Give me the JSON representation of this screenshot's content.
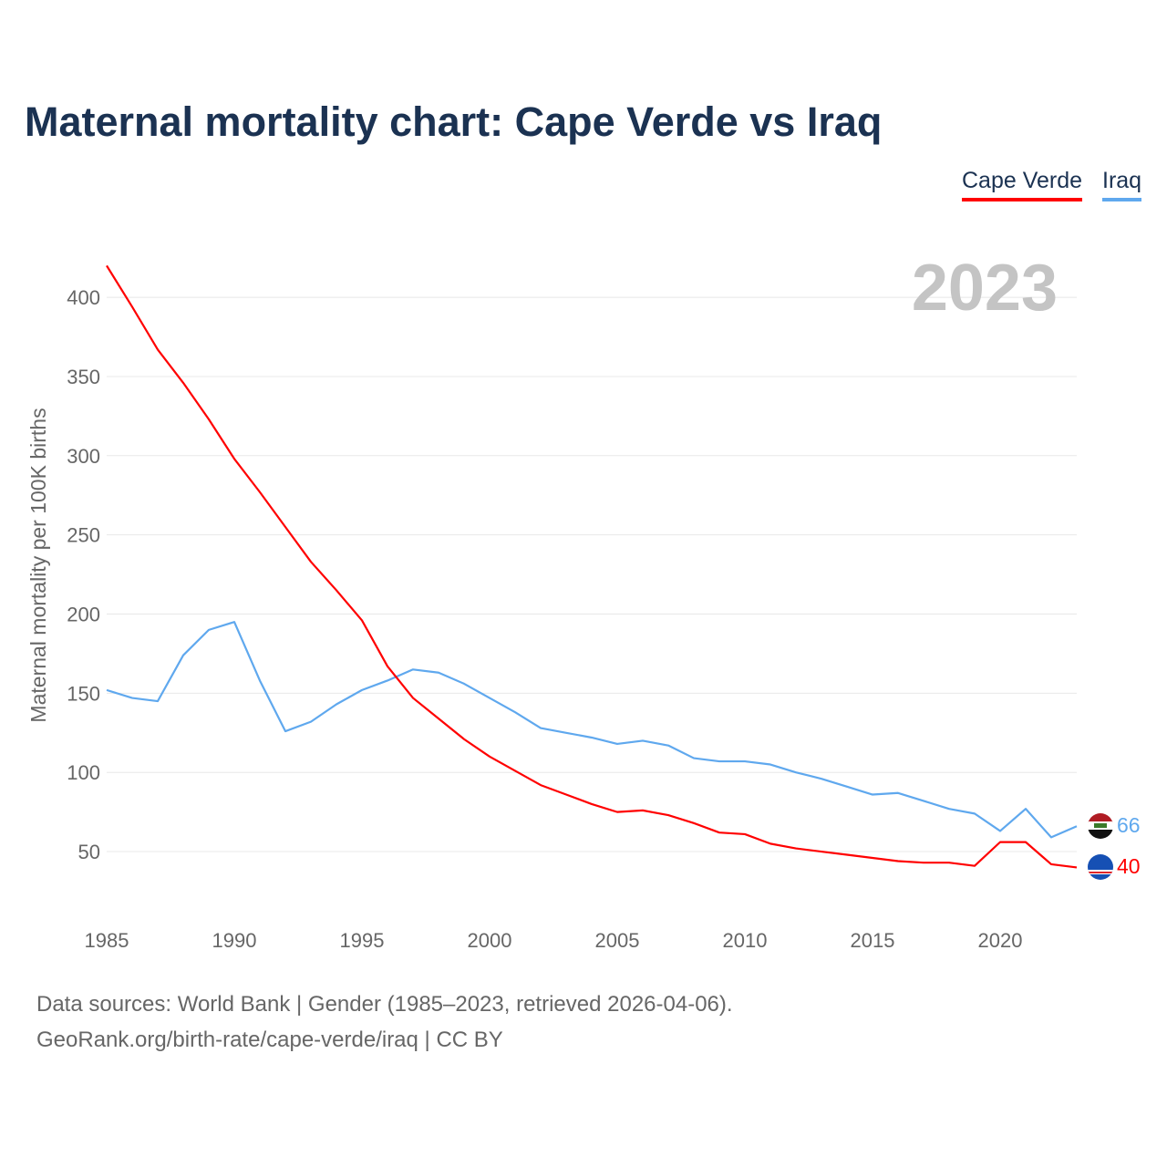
{
  "title": "Maternal mortality chart: Cape Verde vs Iraq",
  "footer": {
    "line1": "Data sources: World Bank | Gender (1985–2023, retrieved 2026-04-06).",
    "line2": "GeoRank.org/birth-rate/cape-verde/iraq | CC BY"
  },
  "chart_data": {
    "type": "line",
    "title": "Maternal mortality chart: Cape Verde vs Iraq",
    "ylabel": "Maternal mortality per 100K births",
    "xlabel": "",
    "year_label": "2023",
    "ylim": [
      0,
      420
    ],
    "xlim": [
      1985,
      2023
    ],
    "yticks": [
      50,
      100,
      150,
      200,
      250,
      300,
      350,
      400
    ],
    "xticks": [
      1985,
      1990,
      1995,
      2000,
      2005,
      2010,
      2015,
      2020
    ],
    "grid": true,
    "legend_position": "top-right",
    "x": [
      1985,
      1986,
      1987,
      1988,
      1989,
      1990,
      1991,
      1992,
      1993,
      1994,
      1995,
      1996,
      1997,
      1998,
      1999,
      2000,
      2001,
      2002,
      2003,
      2004,
      2005,
      2006,
      2007,
      2008,
      2009,
      2010,
      2011,
      2012,
      2013,
      2014,
      2015,
      2016,
      2017,
      2018,
      2019,
      2020,
      2021,
      2022,
      2023
    ],
    "series": [
      {
        "name": "Cape Verde",
        "color": "#ff0000",
        "end_label": "40",
        "flag": "cape-verde-flag-icon",
        "values": [
          420,
          394,
          367,
          346,
          323,
          298,
          277,
          255,
          233,
          215,
          196,
          167,
          147,
          134,
          121,
          110,
          101,
          92,
          86,
          80,
          75,
          76,
          73,
          68,
          62,
          61,
          55,
          52,
          50,
          48,
          46,
          44,
          43,
          43,
          41,
          56,
          56,
          42,
          40
        ]
      },
      {
        "name": "Iraq",
        "color": "#5fa8ee",
        "end_label": "66",
        "flag": "iraq-flag-icon",
        "values": [
          152,
          147,
          145,
          174,
          190,
          195,
          158,
          126,
          132,
          143,
          152,
          158,
          165,
          163,
          156,
          147,
          138,
          128,
          125,
          122,
          118,
          120,
          117,
          109,
          107,
          107,
          105,
          100,
          96,
          91,
          86,
          87,
          82,
          77,
          74,
          63,
          77,
          59,
          66
        ]
      }
    ]
  }
}
